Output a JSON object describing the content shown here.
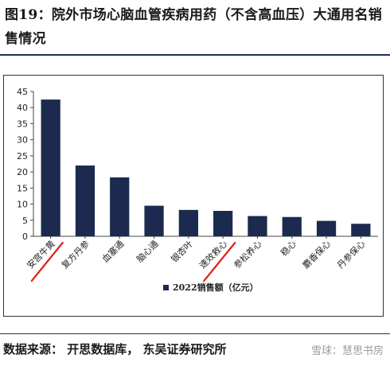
{
  "header": {
    "title": "图19：院外市场心脑血管疾病用药（不含高血压）大通用名销售情况"
  },
  "chart_data": {
    "type": "bar",
    "title": "图19：院外市场心脑血管疾病用药（不含高血压）大通用名销售情况",
    "categories": [
      "安宫牛黄",
      "复方丹参",
      "血塞通",
      "脑心通",
      "银杏叶",
      "速效救心",
      "参松养心",
      "稳心",
      "麝香保心",
      "丹参保心"
    ],
    "series": [
      {
        "name": "2022销售额（亿元）",
        "values": [
          42.5,
          22.0,
          18.3,
          9.5,
          8.2,
          7.9,
          6.3,
          6.0,
          4.8,
          3.9
        ]
      }
    ],
    "yticks": [
      0,
      5,
      10,
      15,
      20,
      25,
      30,
      35,
      40,
      45
    ],
    "ylim": [
      0,
      45
    ],
    "xlabel": "",
    "ylabel": "",
    "legend_position": "bottom",
    "bar_color": "#1b2a4e",
    "highlighted_categories": [
      "安宫牛黄",
      "速效救心"
    ],
    "highlight_color": "#e0231a",
    "grid": false
  },
  "footer": {
    "source": "数据来源：  开思数据库，  东吴证券研究所",
    "watermark": "雪球：慧思书房"
  }
}
